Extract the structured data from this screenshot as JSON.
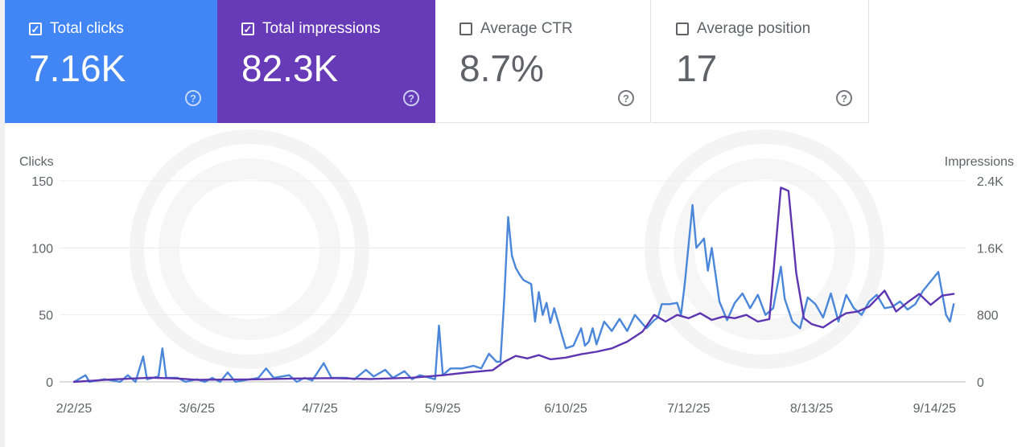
{
  "cards": [
    {
      "label": "Total clicks",
      "value": "7.16K",
      "checked": true
    },
    {
      "label": "Total impressions",
      "value": "82.3K",
      "checked": true
    },
    {
      "label": "Average CTR",
      "value": "8.7%",
      "checked": false
    },
    {
      "label": "Average position",
      "value": "17",
      "checked": false
    }
  ],
  "colors": {
    "clicks": "#4a86d9",
    "impressions": "#5e35b1"
  },
  "chart_data": {
    "type": "line",
    "ylabel_left": "Clicks",
    "ylabel_right": "Impressions",
    "ylim_left": [
      0,
      150
    ],
    "ylim_right": [
      0,
      2400
    ],
    "y_ticks_left": [
      "150",
      "100",
      "50",
      "0"
    ],
    "y_ticks_right": [
      "2.4K",
      "1.6K",
      "800",
      "0"
    ],
    "x_ticks": [
      "2/2/25",
      "3/6/25",
      "4/7/25",
      "5/9/25",
      "6/10/25",
      "7/12/25",
      "8/13/25",
      "9/14/25"
    ],
    "x_range": [
      "2/2/25",
      "9/20/25"
    ],
    "grid": true,
    "series": [
      {
        "name": "Clicks",
        "axis": "left",
        "points": [
          [
            "2/2/25",
            0
          ],
          [
            "2/5/25",
            5
          ],
          [
            "2/6/25",
            0
          ],
          [
            "2/10/25",
            2
          ],
          [
            "2/14/25",
            0
          ],
          [
            "2/16/25",
            5
          ],
          [
            "2/18/25",
            0
          ],
          [
            "2/20/25",
            19
          ],
          [
            "2/21/25",
            2
          ],
          [
            "2/24/25",
            4
          ],
          [
            "2/25/25",
            25
          ],
          [
            "2/26/25",
            3
          ],
          [
            "3/1/25",
            3
          ],
          [
            "3/3/25",
            0
          ],
          [
            "3/6/25",
            2
          ],
          [
            "3/8/25",
            0
          ],
          [
            "3/10/25",
            3
          ],
          [
            "3/12/25",
            0
          ],
          [
            "3/14/25",
            7
          ],
          [
            "3/16/25",
            0
          ],
          [
            "3/22/25",
            3
          ],
          [
            "3/24/25",
            10
          ],
          [
            "3/26/25",
            3
          ],
          [
            "3/30/25",
            5
          ],
          [
            "4/1/25",
            0
          ],
          [
            "4/3/25",
            3
          ],
          [
            "4/5/25",
            1
          ],
          [
            "4/8/25",
            14
          ],
          [
            "4/10/25",
            3
          ],
          [
            "4/14/25",
            3
          ],
          [
            "4/16/25",
            2
          ],
          [
            "4/19/25",
            9
          ],
          [
            "4/21/25",
            4
          ],
          [
            "4/24/25",
            9
          ],
          [
            "4/26/25",
            3
          ],
          [
            "4/29/25",
            8
          ],
          [
            "5/1/25",
            2
          ],
          [
            "5/3/25",
            5
          ],
          [
            "5/7/25",
            2
          ],
          [
            "5/8/25",
            42
          ],
          [
            "5/9/25",
            5
          ],
          [
            "5/11/25",
            10
          ],
          [
            "5/14/25",
            10
          ],
          [
            "5/17/25",
            12
          ],
          [
            "5/19/25",
            10
          ],
          [
            "5/21/25",
            21
          ],
          [
            "5/23/25",
            15
          ],
          [
            "5/24/25",
            15
          ],
          [
            "5/25/25",
            63
          ],
          [
            "5/26/25",
            123
          ],
          [
            "5/27/25",
            94
          ],
          [
            "5/28/25",
            85
          ],
          [
            "5/29/25",
            80
          ],
          [
            "5/30/25",
            76
          ],
          [
            "6/1/25",
            73
          ],
          [
            "6/2/25",
            45
          ],
          [
            "6/3/25",
            67
          ],
          [
            "6/4/25",
            50
          ],
          [
            "6/5/25",
            59
          ],
          [
            "6/6/25",
            44
          ],
          [
            "6/7/25",
            55
          ],
          [
            "6/8/25",
            45
          ],
          [
            "6/9/25",
            35
          ],
          [
            "6/10/25",
            25
          ],
          [
            "6/12/25",
            27
          ],
          [
            "6/14/25",
            40
          ],
          [
            "6/15/25",
            27
          ],
          [
            "6/16/25",
            30
          ],
          [
            "6/17/25",
            40
          ],
          [
            "6/18/25",
            28
          ],
          [
            "6/20/25",
            45
          ],
          [
            "6/22/25",
            38
          ],
          [
            "6/24/25",
            47
          ],
          [
            "6/26/25",
            38
          ],
          [
            "6/28/25",
            50
          ],
          [
            "7/1/25",
            40
          ],
          [
            "7/3/25",
            46
          ],
          [
            "7/4/25",
            48
          ],
          [
            "7/5/25",
            58
          ],
          [
            "7/7/25",
            58
          ],
          [
            "7/9/25",
            59
          ],
          [
            "7/10/25",
            50
          ],
          [
            "7/11/25",
            74
          ],
          [
            "7/13/25",
            132
          ],
          [
            "7/14/25",
            100
          ],
          [
            "7/16/25",
            107
          ],
          [
            "7/17/25",
            83
          ],
          [
            "7/18/25",
            100
          ],
          [
            "7/20/25",
            60
          ],
          [
            "7/22/25",
            46
          ],
          [
            "7/24/25",
            59
          ],
          [
            "7/26/25",
            66
          ],
          [
            "7/28/25",
            55
          ],
          [
            "7/30/25",
            65
          ],
          [
            "8/1/25",
            50
          ],
          [
            "8/3/25",
            55
          ],
          [
            "8/5/25",
            86
          ],
          [
            "8/6/25",
            62
          ],
          [
            "8/8/25",
            45
          ],
          [
            "8/10/25",
            40
          ],
          [
            "8/12/25",
            63
          ],
          [
            "8/14/25",
            58
          ],
          [
            "8/16/25",
            48
          ],
          [
            "8/18/25",
            66
          ],
          [
            "8/20/25",
            45
          ],
          [
            "8/22/25",
            65
          ],
          [
            "8/24/25",
            55
          ],
          [
            "8/26/25",
            50
          ],
          [
            "8/28/25",
            60
          ],
          [
            "8/30/25",
            65
          ],
          [
            "9/1/25",
            55
          ],
          [
            "9/3/25",
            56
          ],
          [
            "9/5/25",
            60
          ],
          [
            "9/7/25",
            54
          ],
          [
            "9/9/25",
            58
          ],
          [
            "9/11/25",
            68
          ],
          [
            "9/13/25",
            75
          ],
          [
            "9/15/25",
            82
          ],
          [
            "9/17/25",
            50
          ],
          [
            "9/18/25",
            45
          ],
          [
            "9/19/25",
            58
          ]
        ]
      },
      {
        "name": "Impressions",
        "axis": "right",
        "points": [
          [
            "2/2/25",
            0
          ],
          [
            "2/12/25",
            30
          ],
          [
            "2/22/25",
            50
          ],
          [
            "3/1/25",
            40
          ],
          [
            "3/6/25",
            25
          ],
          [
            "3/20/25",
            30
          ],
          [
            "4/1/25",
            40
          ],
          [
            "4/10/25",
            45
          ],
          [
            "4/20/25",
            35
          ],
          [
            "5/1/25",
            50
          ],
          [
            "5/9/25",
            80
          ],
          [
            "5/15/25",
            110
          ],
          [
            "5/22/25",
            140
          ],
          [
            "5/25/25",
            240
          ],
          [
            "5/28/25",
            310
          ],
          [
            "5/31/25",
            280
          ],
          [
            "6/3/25",
            320
          ],
          [
            "6/6/25",
            270
          ],
          [
            "6/10/25",
            290
          ],
          [
            "6/14/25",
            330
          ],
          [
            "6/18/25",
            360
          ],
          [
            "6/22/25",
            400
          ],
          [
            "6/26/25",
            480
          ],
          [
            "6/30/25",
            600
          ],
          [
            "7/3/25",
            800
          ],
          [
            "7/6/25",
            720
          ],
          [
            "7/9/25",
            800
          ],
          [
            "7/12/25",
            760
          ],
          [
            "7/15/25",
            820
          ],
          [
            "7/18/25",
            740
          ],
          [
            "7/21/25",
            780
          ],
          [
            "7/24/25",
            760
          ],
          [
            "7/27/25",
            800
          ],
          [
            "7/30/25",
            720
          ],
          [
            "8/2/25",
            750
          ],
          [
            "8/5/25",
            2320
          ],
          [
            "8/7/25",
            2280
          ],
          [
            "8/9/25",
            1300
          ],
          [
            "8/11/25",
            760
          ],
          [
            "8/13/25",
            690
          ],
          [
            "8/16/25",
            650
          ],
          [
            "8/19/25",
            740
          ],
          [
            "8/22/25",
            820
          ],
          [
            "8/25/25",
            840
          ],
          [
            "8/28/25",
            900
          ],
          [
            "9/1/25",
            1090
          ],
          [
            "9/4/25",
            840
          ],
          [
            "9/7/25",
            950
          ],
          [
            "9/10/25",
            1050
          ],
          [
            "9/13/25",
            920
          ],
          [
            "9/16/25",
            1030
          ],
          [
            "9/19/25",
            1050
          ]
        ]
      }
    ]
  }
}
